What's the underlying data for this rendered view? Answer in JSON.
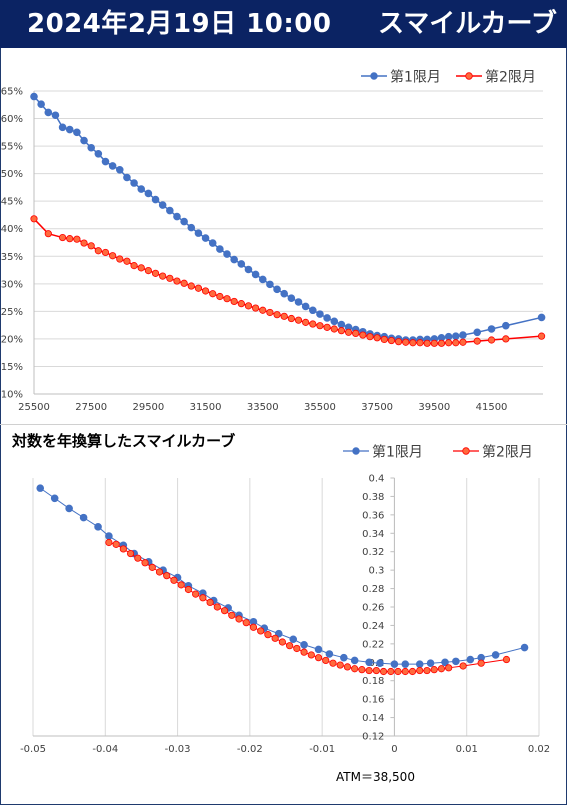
{
  "header": {
    "date": "2024年2月19日 10:00",
    "title": "スマイルカーブ"
  },
  "colors": {
    "header_bg": "#0b2363",
    "series1": "#4472c4",
    "series2": "#ff0000",
    "series2_marker": "#ff6a3d"
  },
  "chart_data": [
    {
      "type": "line",
      "title": "",
      "xlabel": "",
      "ylabel": "",
      "xlim": [
        25500,
        43300
      ],
      "ylim": [
        0.1,
        0.65
      ],
      "x_ticks": [
        25500,
        27500,
        29500,
        31500,
        33500,
        35500,
        37500,
        39500,
        41500
      ],
      "x_tick_labels": [
        "25500",
        "27500",
        "29500",
        "31500",
        "33500",
        "35500",
        "37500",
        "39500",
        "41500"
      ],
      "y_ticks": [
        0.1,
        0.15,
        0.2,
        0.25,
        0.3,
        0.35,
        0.4,
        0.45,
        0.5,
        0.55,
        0.6,
        0.65
      ],
      "y_tick_labels": [
        "10%",
        "15%",
        "20%",
        "25%",
        "30%",
        "35%",
        "40%",
        "45%",
        "50%",
        "55%",
        "60%",
        "65%"
      ],
      "legend": {
        "position": "top-right",
        "entries": [
          "第1限月",
          "第2限月"
        ]
      },
      "grid": true,
      "series": [
        {
          "name": "第1限月",
          "x": [
            25500,
            25750,
            26000,
            26250,
            26500,
            26750,
            27000,
            27250,
            27500,
            27750,
            28000,
            28250,
            28500,
            28750,
            29000,
            29250,
            29500,
            29750,
            30000,
            30250,
            30500,
            30750,
            31000,
            31250,
            31500,
            31750,
            32000,
            32250,
            32500,
            32750,
            33000,
            33250,
            33500,
            33750,
            34000,
            34250,
            34500,
            34750,
            35000,
            35250,
            35500,
            35750,
            36000,
            36250,
            36500,
            36750,
            37000,
            37250,
            37500,
            37750,
            38000,
            38250,
            38500,
            38750,
            39000,
            39250,
            39500,
            39750,
            40000,
            40250,
            40500,
            41000,
            41500,
            42000,
            43250
          ],
          "y": [
            0.64,
            0.626,
            0.611,
            0.606,
            0.584,
            0.58,
            0.575,
            0.56,
            0.547,
            0.536,
            0.522,
            0.514,
            0.507,
            0.493,
            0.483,
            0.472,
            0.464,
            0.453,
            0.443,
            0.433,
            0.422,
            0.413,
            0.402,
            0.392,
            0.383,
            0.374,
            0.363,
            0.354,
            0.344,
            0.336,
            0.326,
            0.317,
            0.308,
            0.299,
            0.29,
            0.282,
            0.274,
            0.267,
            0.259,
            0.252,
            0.245,
            0.238,
            0.232,
            0.226,
            0.221,
            0.217,
            0.213,
            0.209,
            0.206,
            0.204,
            0.201,
            0.2,
            0.198,
            0.198,
            0.199,
            0.199,
            0.2,
            0.202,
            0.204,
            0.205,
            0.207,
            0.212,
            0.218,
            0.224,
            0.239
          ]
        },
        {
          "name": "第2限月",
          "x": [
            25500,
            26000,
            26500,
            26750,
            27000,
            27250,
            27500,
            27750,
            28000,
            28250,
            28500,
            28750,
            29000,
            29250,
            29500,
            29750,
            30000,
            30250,
            30500,
            30750,
            31000,
            31250,
            31500,
            31750,
            32000,
            32250,
            32500,
            32750,
            33000,
            33250,
            33500,
            33750,
            34000,
            34250,
            34500,
            34750,
            35000,
            35250,
            35500,
            35750,
            36000,
            36250,
            36500,
            36750,
            37000,
            37250,
            37500,
            37750,
            38000,
            38250,
            38500,
            38750,
            39000,
            39250,
            39500,
            39750,
            40000,
            40250,
            40500,
            41000,
            41500,
            42000,
            43250
          ],
          "y": [
            0.418,
            0.391,
            0.384,
            0.382,
            0.381,
            0.374,
            0.369,
            0.36,
            0.357,
            0.351,
            0.345,
            0.341,
            0.333,
            0.329,
            0.324,
            0.319,
            0.314,
            0.31,
            0.305,
            0.301,
            0.296,
            0.292,
            0.287,
            0.282,
            0.277,
            0.273,
            0.268,
            0.264,
            0.26,
            0.256,
            0.252,
            0.248,
            0.244,
            0.241,
            0.237,
            0.234,
            0.23,
            0.227,
            0.224,
            0.221,
            0.218,
            0.215,
            0.212,
            0.21,
            0.207,
            0.204,
            0.202,
            0.199,
            0.197,
            0.195,
            0.194,
            0.193,
            0.193,
            0.192,
            0.192,
            0.192,
            0.193,
            0.193,
            0.194,
            0.196,
            0.198,
            0.2,
            0.205
          ]
        }
      ]
    },
    {
      "type": "scatter",
      "title": "対数を年換算したスマイルカーブ",
      "xlabel": "",
      "ylabel": "",
      "xlim": [
        -0.05,
        0.02
      ],
      "ylim": [
        0.12,
        0.4
      ],
      "x_ticks": [
        -0.05,
        -0.04,
        -0.03,
        -0.02,
        -0.01,
        0,
        0.01,
        0.02
      ],
      "x_tick_labels": [
        "-0.05",
        "-0.04",
        "-0.03",
        "-0.02",
        "-0.01",
        "0",
        "0.01",
        "0.02"
      ],
      "y_ticks": [
        0.12,
        0.14,
        0.16,
        0.18,
        0.2,
        0.22,
        0.24,
        0.26,
        0.28,
        0.3,
        0.32,
        0.34,
        0.36,
        0.38,
        0.4
      ],
      "y_tick_labels": [
        "0.12",
        "0.14",
        "0.16",
        "0.18",
        "0.2",
        "0.22",
        "0.24",
        "0.26",
        "0.28",
        "0.3",
        "0.32",
        "0.34",
        "0.36",
        "0.38",
        "0.4"
      ],
      "legend": {
        "position": "top-right",
        "entries": [
          "第1限月",
          "第2限月"
        ]
      },
      "annotation": "ATM＝38,500",
      "grid": true,
      "series": [
        {
          "name": "第1限月",
          "x": [
            -0.049,
            -0.047,
            -0.045,
            -0.043,
            -0.041,
            -0.0395,
            -0.0375,
            -0.036,
            -0.034,
            -0.032,
            -0.03,
            -0.0285,
            -0.0265,
            -0.025,
            -0.023,
            -0.0215,
            -0.0195,
            -0.018,
            -0.016,
            -0.014,
            -0.0125,
            -0.0105,
            -0.009,
            -0.007,
            -0.0055,
            -0.0035,
            -0.002,
            0.0,
            0.0015,
            0.0035,
            0.005,
            0.007,
            0.0085,
            0.0105,
            0.012,
            0.014,
            0.018
          ],
          "y": [
            0.389,
            0.378,
            0.367,
            0.357,
            0.347,
            0.337,
            0.327,
            0.318,
            0.309,
            0.3,
            0.292,
            0.283,
            0.275,
            0.267,
            0.259,
            0.251,
            0.244,
            0.237,
            0.231,
            0.225,
            0.219,
            0.214,
            0.209,
            0.205,
            0.202,
            0.2,
            0.199,
            0.198,
            0.198,
            0.198,
            0.199,
            0.2,
            0.201,
            0.203,
            0.205,
            0.208,
            0.216
          ]
        },
        {
          "name": "第2限月",
          "x": [
            -0.0395,
            -0.0385,
            -0.0375,
            -0.0365,
            -0.0355,
            -0.0345,
            -0.0335,
            -0.0325,
            -0.0315,
            -0.0305,
            -0.0295,
            -0.0285,
            -0.0275,
            -0.0265,
            -0.0255,
            -0.0245,
            -0.0235,
            -0.0225,
            -0.0215,
            -0.0205,
            -0.0195,
            -0.0185,
            -0.0175,
            -0.0165,
            -0.0155,
            -0.0145,
            -0.0135,
            -0.0125,
            -0.0115,
            -0.0105,
            -0.0095,
            -0.0085,
            -0.0075,
            -0.0065,
            -0.0055,
            -0.0045,
            -0.0035,
            -0.0025,
            -0.0015,
            -0.0005,
            0.0005,
            0.0015,
            0.0025,
            0.0035,
            0.0045,
            0.0055,
            0.0065,
            0.0075,
            0.0095,
            0.012,
            0.0155
          ],
          "y": [
            0.33,
            0.328,
            0.323,
            0.318,
            0.313,
            0.308,
            0.303,
            0.298,
            0.294,
            0.289,
            0.284,
            0.279,
            0.274,
            0.27,
            0.265,
            0.26,
            0.256,
            0.251,
            0.247,
            0.243,
            0.238,
            0.234,
            0.23,
            0.226,
            0.222,
            0.218,
            0.215,
            0.211,
            0.208,
            0.205,
            0.202,
            0.199,
            0.197,
            0.195,
            0.193,
            0.192,
            0.191,
            0.191,
            0.19,
            0.19,
            0.19,
            0.19,
            0.19,
            0.191,
            0.191,
            0.192,
            0.193,
            0.194,
            0.196,
            0.199,
            0.203
          ]
        }
      ]
    }
  ]
}
